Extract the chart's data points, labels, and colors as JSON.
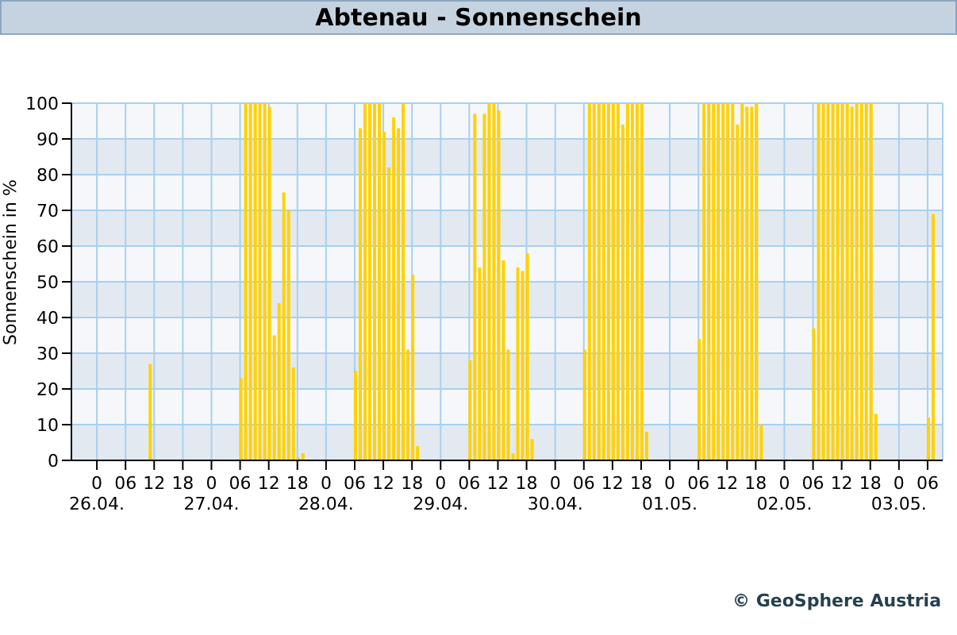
{
  "chart_data": {
    "type": "bar",
    "title": "Abtenau - Sonnenschein",
    "ylabel": "Sonnenschein in %",
    "x": [
      "--04-26T11:00",
      "--04-27T06:00",
      "--04-27T07:00",
      "--04-27T08:00",
      "--04-27T09:00",
      "--04-27T10:00",
      "--04-27T11:00",
      "--04-27T12:00",
      "--04-27T13:00",
      "--04-27T14:00",
      "--04-27T15:00",
      "--04-27T16:00",
      "--04-27T17:00",
      "--04-27T18:00",
      "--04-27T19:00",
      "--04-28T06:00",
      "--04-28T07:00",
      "--04-28T08:00",
      "--04-28T09:00",
      "--04-28T10:00",
      "--04-28T11:00",
      "--04-28T12:00",
      "--04-28T13:00",
      "--04-28T14:00",
      "--04-28T15:00",
      "--04-28T16:00",
      "--04-28T17:00",
      "--04-28T18:00",
      "--04-28T19:00",
      "--04-29T06:00",
      "--04-29T07:00",
      "--04-29T08:00",
      "--04-29T09:00",
      "--04-29T10:00",
      "--04-29T11:00",
      "--04-29T12:00",
      "--04-29T13:00",
      "--04-29T14:00",
      "--04-29T15:00",
      "--04-29T16:00",
      "--04-29T17:00",
      "--04-29T18:00",
      "--04-29T19:00",
      "--04-30T06:00",
      "--04-30T07:00",
      "--04-30T08:00",
      "--04-30T09:00",
      "--04-30T10:00",
      "--04-30T11:00",
      "--04-30T12:00",
      "--04-30T13:00",
      "--04-30T14:00",
      "--04-30T15:00",
      "--04-30T16:00",
      "--04-30T17:00",
      "--04-30T18:00",
      "--04-30T19:00",
      "--05-01T06:00",
      "--05-01T07:00",
      "--05-01T08:00",
      "--05-01T09:00",
      "--05-01T10:00",
      "--05-01T11:00",
      "--05-01T12:00",
      "--05-01T13:00",
      "--05-01T14:00",
      "--05-01T15:00",
      "--05-01T16:00",
      "--05-01T17:00",
      "--05-01T18:00",
      "--05-01T19:00",
      "--05-02T06:00",
      "--05-02T07:00",
      "--05-02T08:00",
      "--05-02T09:00",
      "--05-02T10:00",
      "--05-02T11:00",
      "--05-02T12:00",
      "--05-02T13:00",
      "--05-02T14:00",
      "--05-02T15:00",
      "--05-02T16:00",
      "--05-02T17:00",
      "--05-02T18:00",
      "--05-02T19:00",
      "--05-03T06:00",
      "--05-03T07:00"
    ],
    "series": [
      {
        "color": "#ffd200",
        "values": [
          27,
          23,
          100,
          100,
          100,
          100,
          100,
          99,
          35,
          44,
          75,
          70,
          26,
          1,
          2,
          25,
          93,
          100,
          100,
          100,
          100,
          92,
          82,
          96,
          93,
          100,
          31,
          52,
          4,
          28,
          97,
          54,
          97,
          100,
          100,
          98,
          56,
          31,
          2,
          54,
          53,
          58,
          6,
          31,
          100,
          100,
          100,
          100,
          100,
          100,
          100,
          94,
          100,
          100,
          100,
          100,
          8,
          34,
          100,
          100,
          100,
          100,
          100,
          100,
          100,
          94,
          100,
          99,
          99,
          100,
          10,
          37,
          100,
          100,
          100,
          100,
          100,
          100,
          100,
          99,
          100,
          100,
          100,
          100,
          13,
          12,
          69
        ]
      }
    ],
    "xlim": [
      "--04-25T18:40",
      "--05-03T09:10"
    ],
    "xticks": [
      {
        "value": "--04-26T00:00",
        "label": "0\n26.04."
      },
      {
        "value": "--04-26T06:00",
        "label": "06"
      },
      {
        "value": "--04-26T12:00",
        "label": "12"
      },
      {
        "value": "--04-26T18:00",
        "label": "18"
      },
      {
        "value": "--04-27T00:00",
        "label": "0\n27.04."
      },
      {
        "value": "--04-27T06:00",
        "label": "06"
      },
      {
        "value": "--04-27T12:00",
        "label": "12"
      },
      {
        "value": "--04-27T18:00",
        "label": "18"
      },
      {
        "value": "--04-28T00:00",
        "label": "0\n28.04."
      },
      {
        "value": "--04-28T06:00",
        "label": "06"
      },
      {
        "value": "--04-28T12:00",
        "label": "12"
      },
      {
        "value": "--04-28T18:00",
        "label": "18"
      },
      {
        "value": "--04-29T00:00",
        "label": "0\n29.04."
      },
      {
        "value": "--04-29T06:00",
        "label": "06"
      },
      {
        "value": "--04-29T12:00",
        "label": "12"
      },
      {
        "value": "--04-29T18:00",
        "label": "18"
      },
      {
        "value": "--04-30T00:00",
        "label": "0\n30.04."
      },
      {
        "value": "--04-30T06:00",
        "label": "06"
      },
      {
        "value": "--04-30T12:00",
        "label": "12"
      },
      {
        "value": "--04-30T18:00",
        "label": "18"
      },
      {
        "value": "--05-01T00:00",
        "label": "0\n01.05."
      },
      {
        "value": "--05-01T06:00",
        "label": "06"
      },
      {
        "value": "--05-01T12:00",
        "label": "12"
      },
      {
        "value": "--05-01T18:00",
        "label": "18"
      },
      {
        "value": "--05-02T00:00",
        "label": "0\n02.05."
      },
      {
        "value": "--05-02T06:00",
        "label": "06"
      },
      {
        "value": "--05-02T12:00",
        "label": "12"
      },
      {
        "value": "--05-02T18:00",
        "label": "18"
      },
      {
        "value": "--05-03T00:00",
        "label": "0\n03.05."
      },
      {
        "value": "--05-03T06:00",
        "label": "06"
      }
    ],
    "ylim": [
      0,
      100
    ],
    "yticks": [
      0,
      10,
      20,
      30,
      40,
      50,
      60,
      70,
      80,
      90,
      100
    ],
    "grid": true,
    "legend": false,
    "annotations": [
      "© GeoSphere Austria"
    ]
  }
}
